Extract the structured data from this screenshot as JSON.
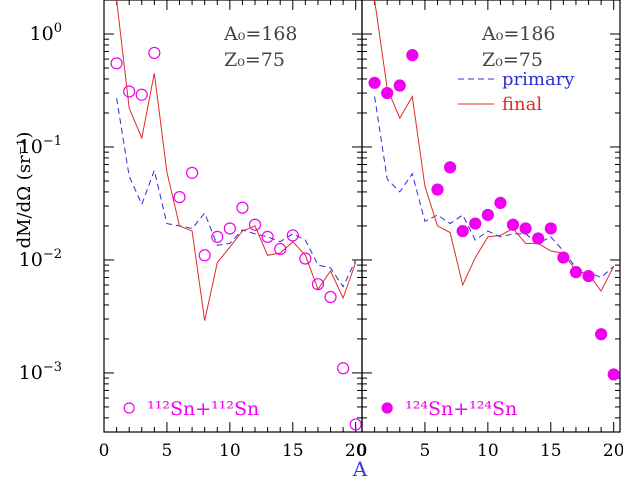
{
  "colors": {
    "primary": "#2d2dd6",
    "final": "#e02a2a",
    "markers": "#f000f0",
    "axis": "#000000",
    "xlabel": "#3a3ad8"
  },
  "axes": {
    "ylabel": "dM/dΩ (sr⁻¹)",
    "xlabel": "A",
    "xticks": [
      "0",
      "5",
      "10",
      "15",
      "20"
    ],
    "yticks": [
      {
        "base": "10",
        "exp": "0",
        "value": 1
      },
      {
        "base": "10",
        "exp": "−1",
        "value": 0.1
      },
      {
        "base": "10",
        "exp": "−2",
        "value": 0.01
      },
      {
        "base": "10",
        "exp": "−3",
        "value": 0.001
      }
    ]
  },
  "chart_data": [
    {
      "type": "line",
      "panel": "left",
      "xlim": [
        0,
        20.5
      ],
      "ylim": [
        0.0003,
        2
      ],
      "yscale": "log",
      "annotations": {
        "a0": "A₀=168",
        "z0": "Z₀=75",
        "reaction": "¹¹²Sn+¹¹²Sn"
      },
      "series": [
        {
          "name": "primary",
          "style": "dashed",
          "x": [
            1,
            2,
            3,
            4,
            5,
            6,
            7,
            8,
            9,
            10,
            11,
            12,
            13,
            14,
            15,
            16,
            17,
            18,
            19,
            20
          ],
          "values": [
            0.27,
            0.055,
            0.031,
            0.062,
            0.021,
            0.02,
            0.019,
            0.026,
            0.0135,
            0.014,
            0.0185,
            0.017,
            0.016,
            0.0145,
            0.017,
            0.015,
            0.009,
            0.0085,
            0.0058,
            0.01
          ]
        },
        {
          "name": "final",
          "style": "solid",
          "x": [
            1,
            2,
            3,
            4,
            5,
            6,
            7,
            8,
            9,
            10,
            11,
            12,
            13,
            14,
            15,
            16,
            17,
            18,
            19,
            20
          ],
          "values": [
            2.0,
            0.22,
            0.12,
            0.45,
            0.06,
            0.02,
            0.018,
            0.0029,
            0.0095,
            0.013,
            0.018,
            0.02,
            0.011,
            0.0115,
            0.0145,
            0.011,
            0.0055,
            0.008,
            0.0046,
            0.0095
          ]
        },
        {
          "name": "data",
          "style": "open-circle",
          "x": [
            1,
            2,
            3,
            4,
            6,
            7,
            8,
            9,
            10,
            11,
            12,
            13,
            14,
            15,
            16,
            17,
            18,
            19,
            20
          ],
          "values": [
            0.55,
            0.31,
            0.29,
            0.68,
            0.036,
            0.059,
            0.011,
            0.016,
            0.019,
            0.029,
            0.0205,
            0.016,
            0.0125,
            0.0165,
            0.0103,
            0.0061,
            0.0047,
            0.0011,
            0.00035
          ]
        }
      ]
    },
    {
      "type": "scatter",
      "panel": "right",
      "xlim": [
        0,
        20.5
      ],
      "ylim": [
        0.0003,
        2
      ],
      "yscale": "log",
      "annotations": {
        "a0": "A₀=186",
        "z0": "Z₀=75",
        "reaction": "¹²⁴Sn+¹²⁴Sn"
      },
      "legend": {
        "position": "top-right",
        "entries": [
          "primary",
          "final"
        ]
      },
      "series": [
        {
          "name": "primary",
          "style": "dashed",
          "x": [
            1,
            2,
            3,
            4,
            5,
            6,
            7,
            8,
            9,
            10,
            11,
            12,
            13,
            14,
            15,
            16,
            17,
            18,
            19,
            20
          ],
          "values": [
            0.28,
            0.052,
            0.04,
            0.058,
            0.022,
            0.025,
            0.021,
            0.025,
            0.015,
            0.018,
            0.016,
            0.017,
            0.017,
            0.014,
            0.016,
            0.012,
            0.0085,
            0.0078,
            0.007,
            0.0088
          ]
        },
        {
          "name": "final",
          "style": "solid",
          "x": [
            1,
            2,
            3,
            4,
            5,
            6,
            7,
            8,
            9,
            10,
            11,
            12,
            13,
            14,
            15,
            16,
            17,
            18,
            19,
            20
          ],
          "values": [
            2.0,
            0.33,
            0.18,
            0.28,
            0.045,
            0.02,
            0.0175,
            0.006,
            0.0105,
            0.016,
            0.0165,
            0.019,
            0.014,
            0.014,
            0.012,
            0.0115,
            0.008,
            0.0075,
            0.0053,
            0.0088
          ]
        },
        {
          "name": "data",
          "style": "filled-circle",
          "x": [
            1,
            2,
            3,
            4,
            6,
            7,
            8,
            9,
            10,
            11,
            12,
            13,
            14,
            15,
            16,
            17,
            18,
            19,
            20
          ],
          "values": [
            0.37,
            0.3,
            0.35,
            0.65,
            0.042,
            0.066,
            0.018,
            0.021,
            0.025,
            0.032,
            0.0205,
            0.019,
            0.0155,
            0.019,
            0.0105,
            0.0078,
            0.0072,
            0.0022,
            0.00097
          ]
        }
      ]
    }
  ]
}
